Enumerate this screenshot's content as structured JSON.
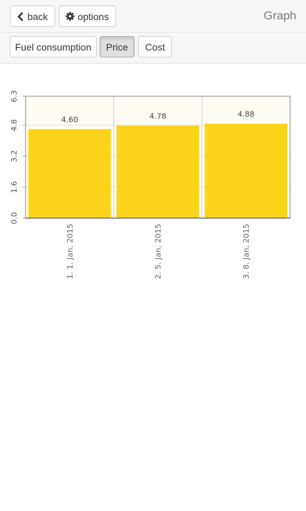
{
  "header": {
    "back_label": "back",
    "options_label": "options",
    "title": "Graph"
  },
  "tabs": [
    {
      "label": "Fuel consumption",
      "active": false
    },
    {
      "label": "Price",
      "active": true
    },
    {
      "label": "Cost",
      "active": false
    }
  ],
  "icons": {
    "back": "chevron-left-icon",
    "options": "gear-icon"
  },
  "colors": {
    "bar": "#fbd31b",
    "plot_background": "#fffcf3",
    "axis": "#999999"
  },
  "chart_data": {
    "type": "bar",
    "categories": [
      "1. 1. Jan, 2015",
      "2. 5. Jan, 2015",
      "3. 8. Jan, 2015"
    ],
    "values": [
      4.6,
      4.78,
      4.88
    ],
    "value_labels": [
      "4.60",
      "4.78",
      "4.88"
    ],
    "ylim": [
      0,
      6.3
    ],
    "yticks": [
      0,
      1.6,
      3.2,
      4.8,
      6.3
    ],
    "ytick_labels": [
      "0.0",
      "1.6",
      "3.2",
      "4.8",
      "6.3"
    ],
    "grid": true,
    "title": "",
    "xlabel": "",
    "ylabel": ""
  }
}
